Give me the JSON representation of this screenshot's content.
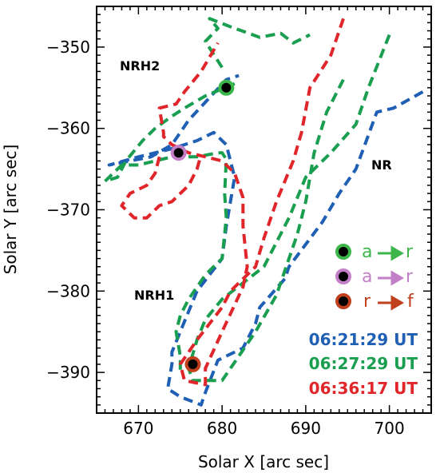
{
  "chart_data": {
    "type": "line",
    "xlabel": "Solar X [arc sec]",
    "ylabel": "Solar Y [arc sec]",
    "xlim": [
      665,
      705
    ],
    "ylim": [
      -395,
      -345
    ],
    "x_ticks": [
      670,
      680,
      690,
      700
    ],
    "y_ticks": [
      -390,
      -380,
      -370,
      -360,
      -350
    ],
    "regions": [
      {
        "label": "NRH2",
        "x": 670.5,
        "y": -353.5
      },
      {
        "label": "NR",
        "x": 694.2,
        "y": -365
      },
      {
        "label": "NRH1",
        "x": 670.5,
        "y": -381.5
      }
    ],
    "series": [
      {
        "name": "06:21:29 UT",
        "color": "#1f5fb4",
        "contours": [
          [
            [
              704,
              -355.5
            ],
            [
              700.5,
              -357.5
            ],
            [
              698.5,
              -358
            ],
            [
              696,
              -365
            ],
            [
              694,
              -368
            ],
            [
              692,
              -371.5
            ],
            [
              688,
              -377
            ],
            [
              687.5,
              -378.5
            ],
            [
              684.5,
              -382
            ],
            [
              684,
              -384
            ],
            [
              682.5,
              -387
            ],
            [
              679.5,
              -388.5
            ],
            [
              677.8,
              -393
            ],
            [
              677.5,
              -394
            ],
            [
              675,
              -393
            ],
            [
              673.5,
              -392
            ],
            [
              674,
              -389
            ],
            [
              674,
              -387.5
            ],
            [
              677,
              -380
            ],
            [
              680,
              -376
            ],
            [
              680.5,
              -372
            ],
            [
              681,
              -369
            ],
            [
              681.5,
              -366
            ],
            [
              680.5,
              -362
            ],
            [
              679,
              -360.5
            ],
            [
              677,
              -361.5
            ],
            [
              674,
              -362.5
            ],
            [
              670,
              -363.5
            ],
            [
              666.5,
              -364.5
            ],
            [
              669,
              -364
            ],
            [
              671.5,
              -363.5
            ],
            [
              674,
              -362
            ],
            [
              676,
              -359
            ],
            [
              680.5,
              -354
            ],
            [
              682,
              -353.5
            ]
          ]
        ]
      },
      {
        "name": "06:27:29 UT",
        "color": "#1a9e4f",
        "contours": [
          [
            [
              700,
              -348.5
            ],
            [
              697.5,
              -355
            ],
            [
              696,
              -359.5
            ],
            [
              693,
              -363
            ],
            [
              690,
              -366
            ],
            [
              688,
              -371
            ],
            [
              685,
              -377
            ],
            [
              680,
              -381
            ],
            [
              678,
              -383.5
            ],
            [
              677,
              -386
            ],
            [
              676,
              -389.5
            ],
            [
              676.5,
              -391
            ],
            [
              680,
              -391
            ],
            [
              682,
              -388
            ],
            [
              684,
              -385
            ],
            [
              686.5,
              -380.5
            ],
            [
              689,
              -373
            ],
            [
              690,
              -369
            ],
            [
              691,
              -363
            ],
            [
              692.5,
              -358
            ],
            [
              694.5,
              -354
            ]
          ],
          [
            [
              681.5,
              -354.5
            ],
            [
              678,
              -356
            ],
            [
              675.5,
              -357.5
            ],
            [
              674,
              -358.5
            ],
            [
              672,
              -360
            ],
            [
              670.5,
              -361.5
            ],
            [
              668.5,
              -364
            ],
            [
              667.5,
              -366
            ],
            [
              666,
              -366.5
            ],
            [
              668,
              -364.5
            ],
            [
              670,
              -364.5
            ],
            [
              672,
              -364
            ],
            [
              674,
              -363.5
            ],
            [
              677,
              -363.5
            ],
            [
              679.5,
              -363
            ],
            [
              680,
              -363
            ],
            [
              680.5,
              -363.8
            ],
            [
              680.3,
              -368
            ],
            [
              680.5,
              -371
            ],
            [
              680,
              -376
            ],
            [
              678,
              -378
            ],
            [
              676,
              -381
            ],
            [
              675,
              -383
            ],
            [
              674.5,
              -385
            ],
            [
              675,
              -388
            ],
            [
              675,
              -390.2
            ]
          ],
          [
            [
              680,
              -352.5
            ],
            [
              678,
              -349.3
            ],
            [
              679.5,
              -347.7
            ],
            [
              678.5,
              -346.5
            ],
            [
              681,
              -347.5
            ],
            [
              684.5,
              -348.8
            ],
            [
              687,
              -348.3
            ],
            [
              688.5,
              -349.5
            ],
            [
              689.5,
              -349
            ],
            [
              690.5,
              -348.5
            ]
          ]
        ]
      },
      {
        "name": "06:36:17 UT",
        "color": "#e0262a",
        "contours": [
          [
            [
              694.5,
              -346.5
            ],
            [
              693,
              -351
            ],
            [
              690.5,
              -355
            ],
            [
              689.5,
              -360.5
            ],
            [
              688.5,
              -364
            ],
            [
              686.5,
              -369
            ],
            [
              685,
              -373.5
            ],
            [
              684,
              -377
            ],
            [
              681,
              -380
            ],
            [
              680,
              -382
            ],
            [
              677,
              -386
            ],
            [
              675,
              -389
            ],
            [
              675.5,
              -391
            ],
            [
              678,
              -391.5
            ],
            [
              678,
              -389.5
            ],
            [
              680,
              -385
            ],
            [
              682.5,
              -379.5
            ],
            [
              683,
              -377
            ],
            [
              682.5,
              -372
            ],
            [
              682.5,
              -368.5
            ],
            [
              681.5,
              -365.5
            ],
            [
              680,
              -364
            ],
            [
              678,
              -363.5
            ],
            [
              676,
              -363
            ],
            [
              674,
              -362
            ],
            [
              673,
              -361
            ],
            [
              673,
              -360.5
            ],
            [
              672.5,
              -357.5
            ],
            [
              674.5,
              -357
            ],
            [
              675.5,
              -355.5
            ],
            [
              677.5,
              -353
            ],
            [
              679.5,
              -349.5
            ]
          ],
          [
            [
              672.5,
              -363.5
            ],
            [
              672,
              -365.5
            ],
            [
              671,
              -367
            ],
            [
              669,
              -368
            ],
            [
              668,
              -369.5
            ],
            [
              669.5,
              -371
            ],
            [
              671,
              -371
            ],
            [
              672.5,
              -369.5
            ],
            [
              674,
              -369
            ],
            [
              676,
              -367
            ],
            [
              677,
              -365
            ],
            [
              677.5,
              -363.2
            ]
          ]
        ]
      }
    ],
    "markers": [
      {
        "x": 680.5,
        "y": -355,
        "color": "#3cb64a"
      },
      {
        "x": 674.8,
        "y": -363,
        "color": "#c37fc8"
      },
      {
        "x": 676.5,
        "y": -389,
        "color": "#c0401e"
      }
    ],
    "legend_markers": [
      {
        "from": "a",
        "to": "r",
        "color": "#3cb64a"
      },
      {
        "from": "a",
        "to": "r",
        "color": "#c37fc8"
      },
      {
        "from": "r",
        "to": "f",
        "color": "#c0401e"
      }
    ]
  }
}
